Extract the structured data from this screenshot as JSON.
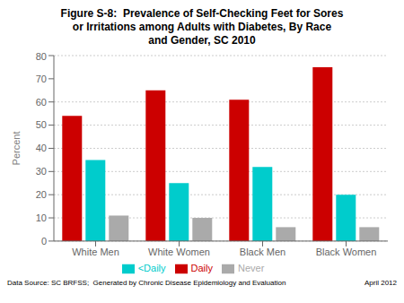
{
  "chart_data": {
    "type": "bar",
    "title": "Figure S-8:  Prevalence of Self-Checking Feet for Sores\nor Irritations among Adults with Diabetes, By Race\nand Gender, SC 2010",
    "categories": [
      "White Men",
      "White Women",
      "Black Men",
      "Black Women"
    ],
    "series": [
      {
        "name": "Daily",
        "color": "#CC0000",
        "values": [
          54,
          65,
          61,
          75
        ]
      },
      {
        "name": "<Daily",
        "color": "#00CCCC",
        "values": [
          35,
          25,
          32,
          20
        ]
      },
      {
        "name": "Never",
        "color": "#AAAAAA",
        "values": [
          11,
          10,
          6,
          6
        ]
      }
    ],
    "ylabel": "Percent",
    "ylim": [
      0,
      80
    ],
    "yticks": [
      0,
      10,
      20,
      30,
      40,
      50,
      60,
      70,
      80
    ],
    "grid": true,
    "legend": "bottom",
    "annotations": [
      "Data Source: SC BRFSS;  Generated by Chronic Disease Epidemiology and Evaluation",
      "April 2012"
    ]
  }
}
